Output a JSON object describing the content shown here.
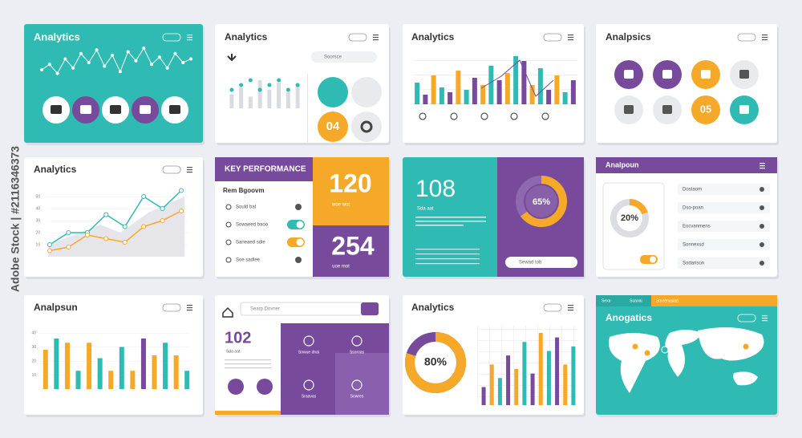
{
  "watermark": "Adobe Stock | #2116346373",
  "cards": [
    {
      "title": "Analytics",
      "line": [
        40,
        55,
        30,
        70,
        45,
        85,
        60,
        95,
        50,
        80,
        35,
        90,
        65,
        100,
        55,
        75,
        45,
        85,
        60,
        70
      ],
      "ylim": [
        0,
        100
      ]
    },
    {
      "title": "Analytics",
      "search": "Soorsce",
      "bars": [
        30,
        45,
        25,
        60,
        40,
        55,
        35,
        50
      ],
      "ylim": [
        0,
        60
      ],
      "badge": "04"
    },
    {
      "title": "Analytics",
      "bars": [
        45,
        20,
        60,
        35,
        25,
        70,
        30,
        55,
        40,
        80,
        50,
        65,
        100,
        90,
        40,
        75,
        30,
        60,
        25,
        50
      ],
      "ylim": [
        0,
        100
      ]
    },
    {
      "title": "Analpsics",
      "badge": "05"
    },
    {
      "title": "Analytics",
      "series": [
        {
          "values": [
            10,
            20,
            20,
            35,
            25,
            50,
            40,
            55
          ]
        },
        {
          "values": [
            5,
            8,
            18,
            15,
            12,
            25,
            30,
            38
          ]
        }
      ],
      "ylim": [
        0,
        60
      ],
      "yticks": [
        10,
        20,
        30,
        40,
        50
      ]
    },
    {
      "title": "KEY PERFORMANCE",
      "subtitle": "Rem Bgoovm",
      "kpi1": "120",
      "kpi1_note": "woe wot",
      "kpi2": "254",
      "kpi2_note": "uoe mot",
      "rows": [
        "Sould bat",
        "Sowaeed baoo",
        "Saneaed sdie",
        "Soe sadlee"
      ]
    },
    {
      "title": "108",
      "note": "Sda aat",
      "donut": {
        "value": 65,
        "label": "65%"
      },
      "search": "Sewad tob"
    },
    {
      "title": "Analpoun",
      "donut": {
        "value": 20,
        "label": "20%"
      },
      "rows": [
        "Dostaom",
        "Dso-poan",
        "Eocvanmens",
        "Sonnexsd",
        "Sodarison"
      ]
    },
    {
      "title": "Analpsun",
      "bars": [
        28,
        36,
        33,
        13,
        33,
        22,
        13,
        30,
        13,
        36,
        24,
        33,
        24,
        13
      ],
      "ylim": [
        0,
        40
      ],
      "yticks": [
        10,
        20,
        30,
        40
      ]
    },
    {
      "title": "102",
      "note": "Sda aat",
      "search": "Searp Dovner",
      "items": [
        "Sowue dnai",
        "Ssoroas",
        "Sraavas",
        "Sowres"
      ]
    },
    {
      "title": "Analytics",
      "donut": {
        "value": 80,
        "label": "80%"
      },
      "bars": [
        20,
        45,
        30,
        55,
        40,
        70,
        35,
        80,
        60,
        75,
        45,
        65
      ],
      "ylim": [
        0,
        80
      ]
    },
    {
      "title": "Anogatics",
      "tabs": [
        "Sexa",
        "Suaoai",
        "Sovrenasiad"
      ]
    }
  ]
}
